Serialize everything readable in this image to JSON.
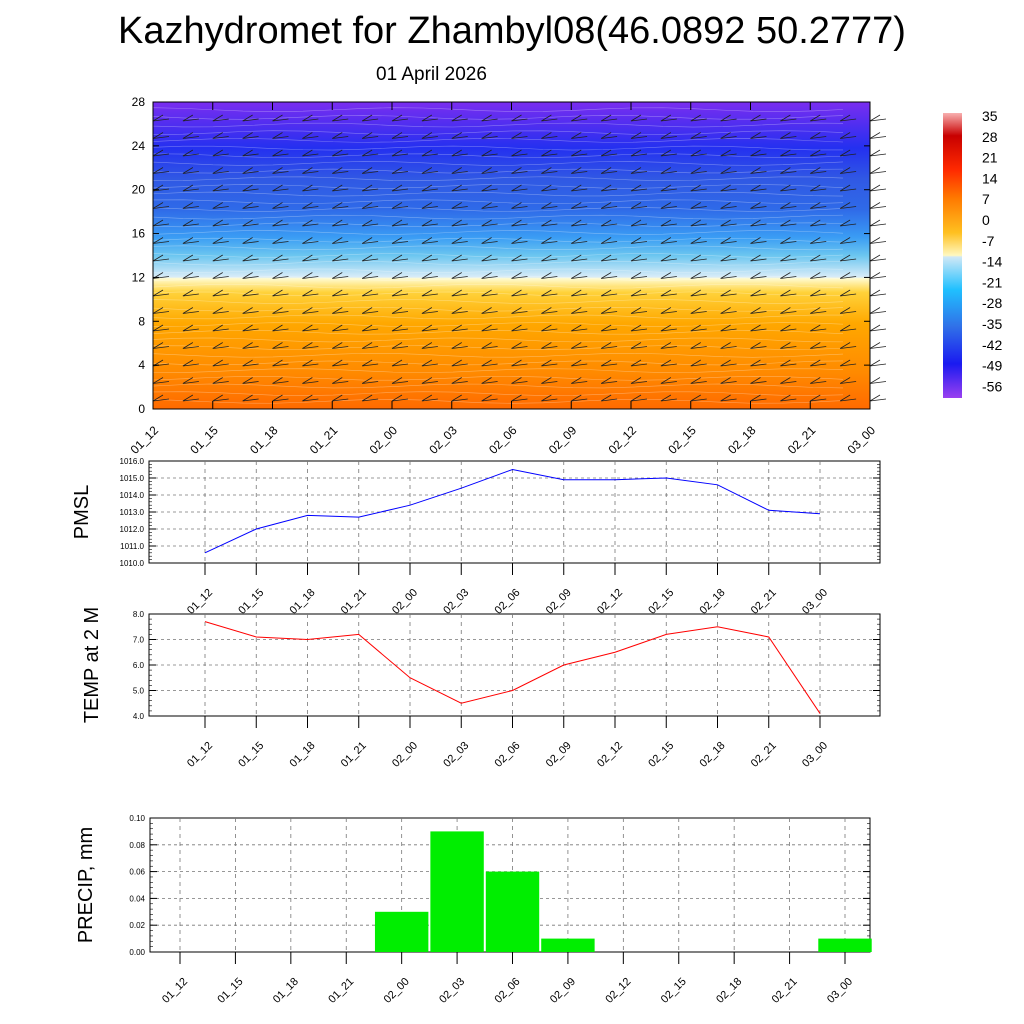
{
  "header": {
    "title": "Kazhydromet for Zhambyl08(46.0892 50.2777)",
    "date": "01 April 2026"
  },
  "chart_data": [
    {
      "type": "heatmap",
      "name": "temperature-wind-cross-section",
      "categories": [
        "01_12",
        "01_15",
        "01_18",
        "01_21",
        "02_00",
        "02_03",
        "02_06",
        "02_09",
        "02_12",
        "02_15",
        "02_18",
        "02_21",
        "03_00"
      ],
      "yticks": [
        0,
        4,
        8,
        12,
        16,
        20,
        24,
        28
      ],
      "ylim": [
        0,
        28
      ],
      "colorbar": {
        "labels": [
          "35",
          "28",
          "21",
          "14",
          "7",
          "0",
          "-7",
          "-14",
          "-21",
          "-28",
          "-35",
          "-42",
          "-49",
          "-56"
        ]
      },
      "colors": {
        "low": "#7a2df0",
        "high": "#ff6600"
      }
    },
    {
      "type": "line",
      "name": "pmsl",
      "ylabel": "PMSL",
      "categories": [
        "01_12",
        "01_15",
        "01_18",
        "01_21",
        "02_00",
        "02_03",
        "02_06",
        "02_09",
        "02_12",
        "02_15",
        "02_18",
        "02_21",
        "03_00"
      ],
      "values": [
        1010.6,
        1012.0,
        1012.8,
        1012.7,
        1013.4,
        1014.4,
        1015.5,
        1014.9,
        1014.9,
        1015.0,
        1014.6,
        1013.1,
        1012.9
      ],
      "ylim": [
        1010,
        1016
      ],
      "yticks": [
        "1010.0",
        "1011.0",
        "1012.0",
        "1013.0",
        "1014.0",
        "1015.0",
        "1016.0"
      ],
      "color": "#0000ff"
    },
    {
      "type": "line",
      "name": "temp-2m",
      "ylabel": "TEMP at 2 M",
      "categories": [
        "01_12",
        "01_15",
        "01_18",
        "01_21",
        "02_00",
        "02_03",
        "02_06",
        "02_09",
        "02_12",
        "02_15",
        "02_18",
        "02_21",
        "03_00"
      ],
      "values": [
        7.7,
        7.1,
        7.0,
        7.2,
        5.5,
        4.5,
        5.0,
        6.0,
        6.5,
        7.2,
        7.5,
        7.1,
        4.1
      ],
      "ylim": [
        4,
        8
      ],
      "yticks": [
        "4.0",
        "5.0",
        "6.0",
        "7.0",
        "8.0"
      ],
      "color": "#ff0000"
    },
    {
      "type": "bar",
      "name": "precip",
      "ylabel": "PRECIP, mm",
      "categories": [
        "01_12",
        "01_15",
        "01_18",
        "01_21",
        "02_00",
        "02_03",
        "02_06",
        "02_09",
        "02_12",
        "02_15",
        "02_18",
        "02_21",
        "03_00"
      ],
      "values": [
        0,
        0,
        0,
        0,
        0.03,
        0.09,
        0.06,
        0.01,
        0,
        0,
        0,
        0,
        0.01
      ],
      "ylim": [
        0,
        0.1
      ],
      "yticks": [
        "0.00",
        "0.02",
        "0.04",
        "0.06",
        "0.08",
        "0.10"
      ],
      "color": "#00ee00"
    }
  ]
}
